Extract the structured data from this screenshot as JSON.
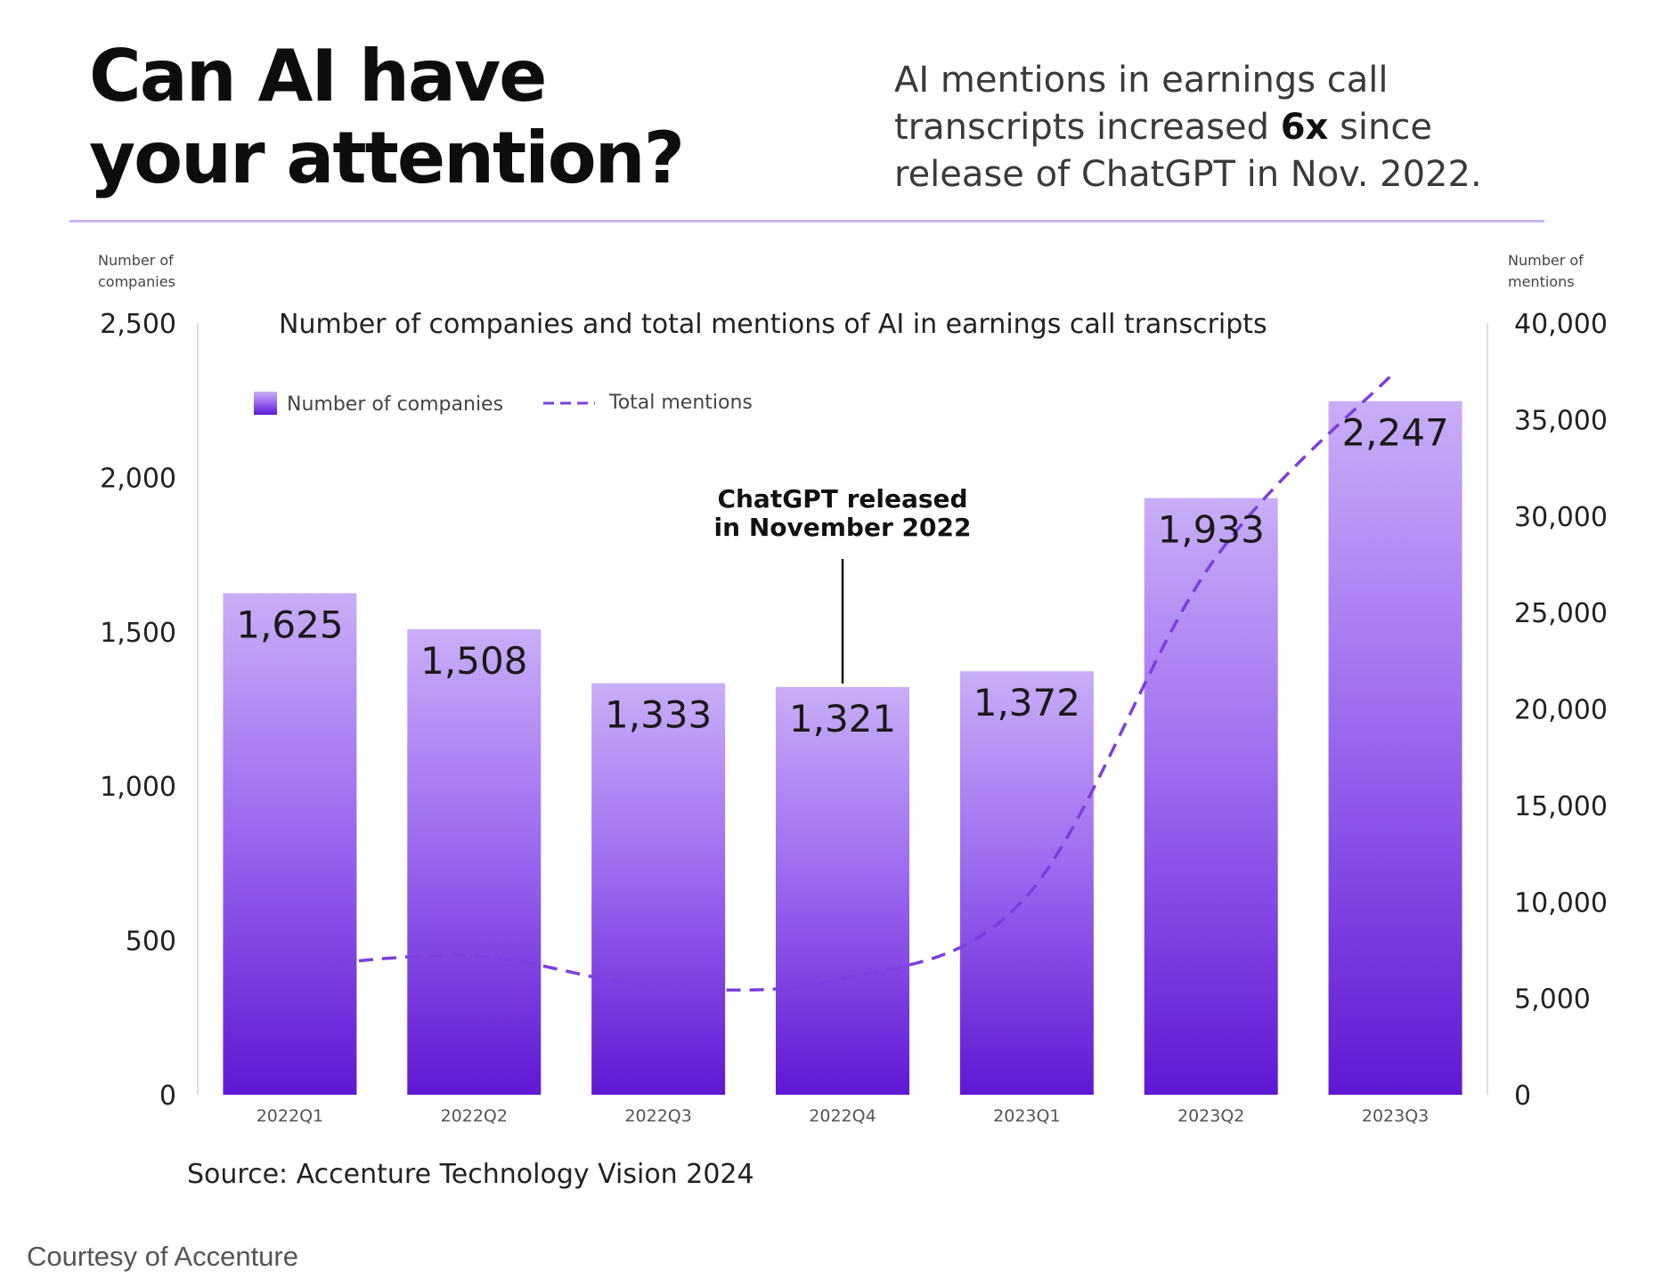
{
  "header": {
    "headline_line1": "Can AI have",
    "headline_line2": "your attention?",
    "sub_part1": "AI mentions in earnings call",
    "sub_part2": "transcripts increased ",
    "sub_bold": "6x",
    "sub_part3": " since",
    "sub_part4": "release of ChatGPT in Nov. 2022."
  },
  "chart_data": {
    "type": "bar",
    "title": "Number of companies and total mentions of AI in earnings call transcripts",
    "categories": [
      "2022Q1",
      "2022Q2",
      "2022Q3",
      "2022Q4",
      "2023Q1",
      "2023Q2",
      "2023Q3"
    ],
    "series": [
      {
        "name": "Number of companies",
        "type": "bar",
        "axis": "left",
        "values": [
          1625,
          1508,
          1333,
          1321,
          1372,
          1933,
          2247
        ],
        "labels": [
          "1,625",
          "1,508",
          "1,333",
          "1,321",
          "1,372",
          "1,933",
          "2,247"
        ]
      },
      {
        "name": "Total mentions",
        "type": "line",
        "style": "dashed",
        "axis": "right",
        "values": [
          6600,
          7200,
          5600,
          6000,
          10300,
          27500,
          37500
        ]
      }
    ],
    "y_left": {
      "label_line1": "Number of",
      "label_line2": "companies",
      "min": 0,
      "max": 2500,
      "ticks": [
        0,
        500,
        1000,
        1500,
        2000,
        2500
      ],
      "tick_labels": [
        "0",
        "500",
        "1,000",
        "1,500",
        "2,000",
        "2,500"
      ]
    },
    "y_right": {
      "label_line1": "Number of",
      "label_line2": "mentions",
      "min": 0,
      "max": 40000,
      "ticks": [
        0,
        5000,
        10000,
        15000,
        20000,
        25000,
        30000,
        35000,
        40000
      ],
      "tick_labels": [
        "0",
        "5,000",
        "10,000",
        "15,000",
        "20,000",
        "25,000",
        "30,000",
        "35,000",
        "40,000"
      ]
    },
    "annotation": {
      "category": "2022Q4",
      "line1": "ChatGPT released",
      "line2": "in November 2022"
    },
    "legend": {
      "bar_label": "Number of companies",
      "line_label": "Total mentions",
      "position": "top-left"
    },
    "grid": false,
    "colors": {
      "bar_top": "#c9aef7",
      "bar_mid": "#9d6cf0",
      "bar_bottom": "#5f18d4",
      "line": "#7a3fe0",
      "axis": "#dddddd"
    }
  },
  "footer": {
    "source": "Source: Accenture Technology Vision 2024",
    "courtesy": "Courtesy of Accenture"
  }
}
